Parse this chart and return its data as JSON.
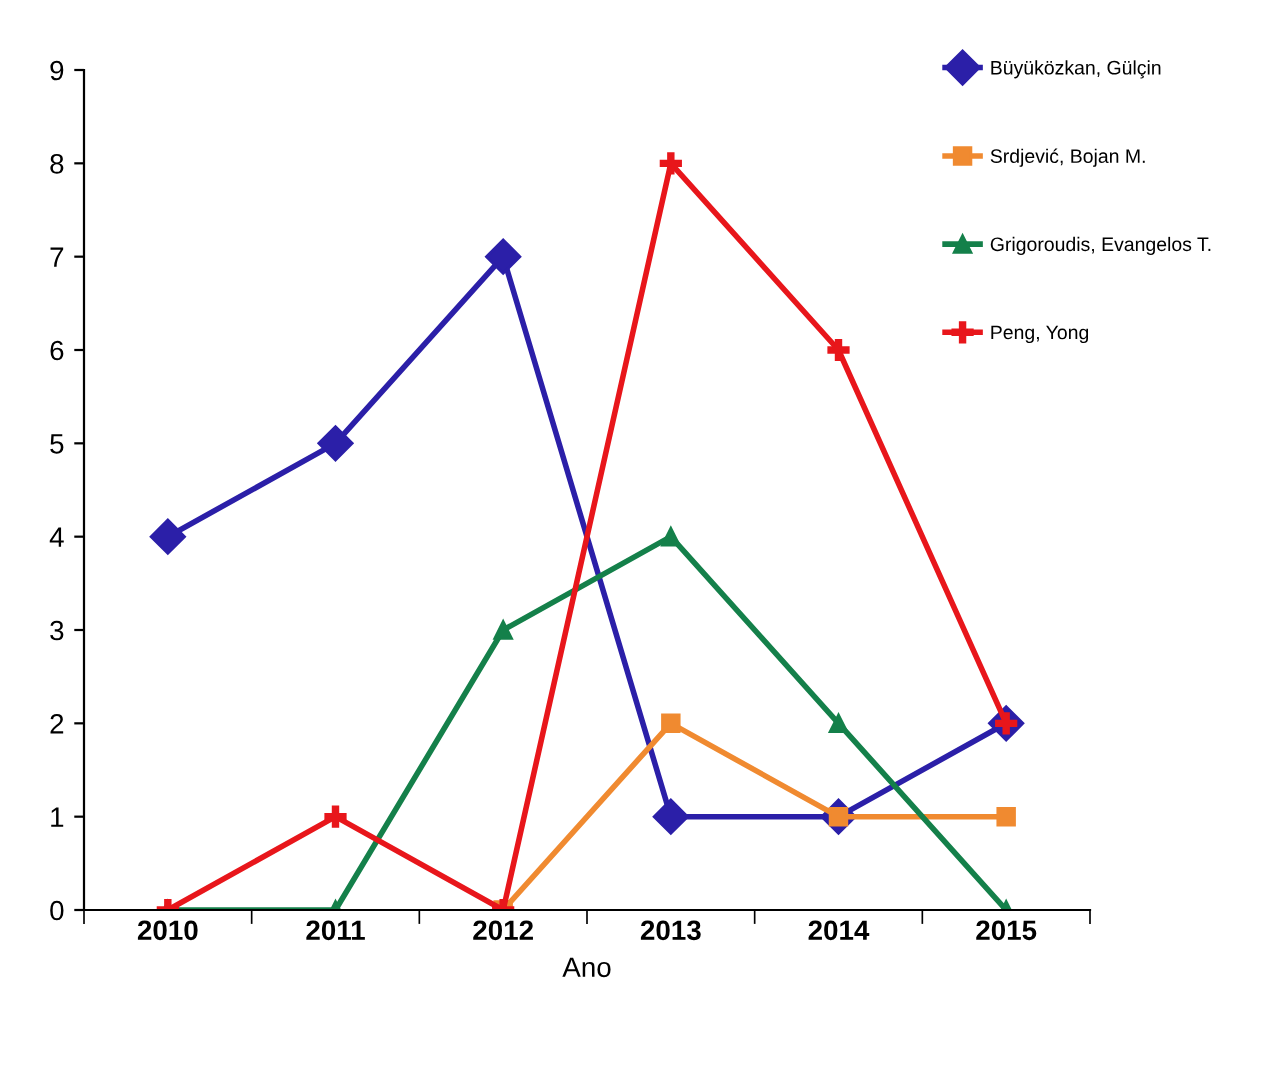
{
  "chart_data": {
    "type": "line",
    "xlabel": "Ano",
    "categories": [
      "2010",
      "2011",
      "2012",
      "2013",
      "2014",
      "2015"
    ],
    "series": [
      {
        "name": "Büyüközkan, Gülçin",
        "color": "#2b1fa8",
        "marker": "diamond",
        "values": [
          4,
          5,
          7,
          1,
          1,
          2
        ]
      },
      {
        "name": "Srdjević, Bojan M.",
        "color": "#f08a30",
        "marker": "square",
        "values": [
          null,
          null,
          0,
          2,
          1,
          1
        ]
      },
      {
        "name": "Grigoroudis, Evangelos T.",
        "color": "#14804a",
        "marker": "triangle",
        "values": [
          0,
          0,
          3,
          4,
          2,
          0
        ]
      },
      {
        "name": "Peng, Yong",
        "color": "#e8161b",
        "marker": "cross",
        "values": [
          0,
          1,
          0,
          8,
          6,
          2
        ]
      }
    ],
    "ylim": [
      0,
      9
    ],
    "yticks": [
      0,
      1,
      2,
      3,
      4,
      5,
      6,
      7,
      8,
      9
    ],
    "grid": false,
    "legend": "top right",
    "line_style": "solid"
  }
}
